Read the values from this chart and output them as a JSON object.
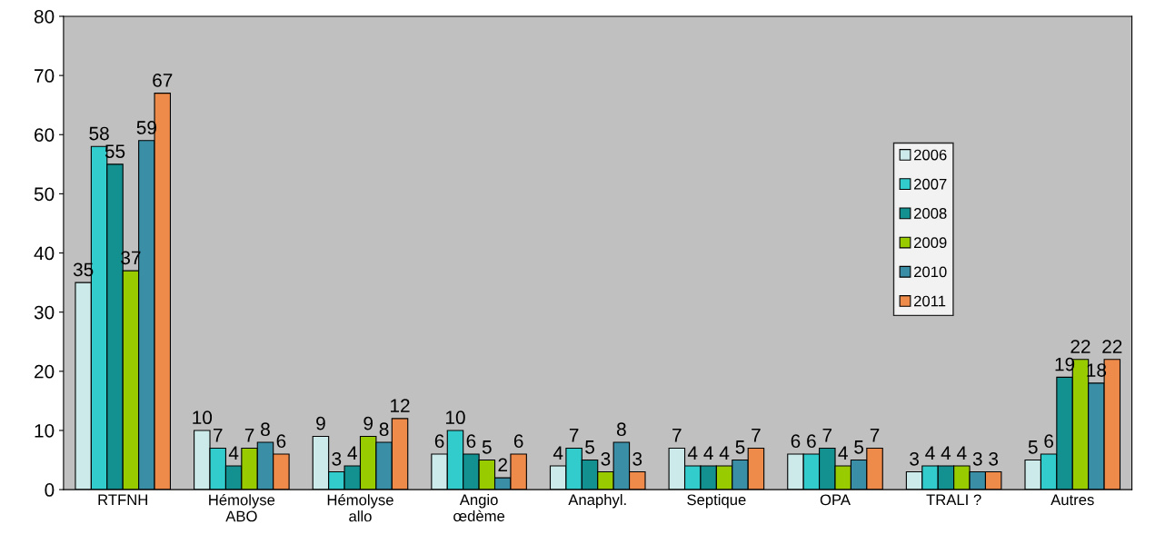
{
  "chart_data": {
    "type": "bar",
    "categories": [
      "RTFNH",
      "Hémolyse\nABO",
      "Hémolyse\nallo",
      "Angio\nœdème",
      "Anaphyl.",
      "Septique",
      "OPA",
      "TRALI ?",
      "Autres"
    ],
    "series": [
      {
        "name": "2006",
        "color": "#cceaea",
        "values": [
          35,
          10,
          9,
          6,
          4,
          7,
          6,
          3,
          5
        ]
      },
      {
        "name": "2007",
        "color": "#33cccc",
        "values": [
          58,
          7,
          3,
          10,
          7,
          4,
          6,
          4,
          6
        ]
      },
      {
        "name": "2008",
        "color": "#139191",
        "values": [
          55,
          4,
          4,
          6,
          5,
          4,
          7,
          4,
          19
        ]
      },
      {
        "name": "2009",
        "color": "#99cc00",
        "values": [
          37,
          7,
          9,
          5,
          3,
          4,
          4,
          4,
          22
        ]
      },
      {
        "name": "2010",
        "color": "#3a8fa6",
        "values": [
          59,
          8,
          8,
          2,
          8,
          5,
          5,
          3,
          18
        ]
      },
      {
        "name": "2011",
        "color": "#ee8a4a",
        "values": [
          67,
          6,
          12,
          6,
          3,
          7,
          7,
          3,
          22
        ]
      }
    ],
    "ylim": [
      0,
      80
    ],
    "yticks": [
      0,
      10,
      20,
      30,
      40,
      50,
      60,
      70,
      80
    ],
    "grid": false,
    "legend": "right",
    "data_labels": true
  }
}
